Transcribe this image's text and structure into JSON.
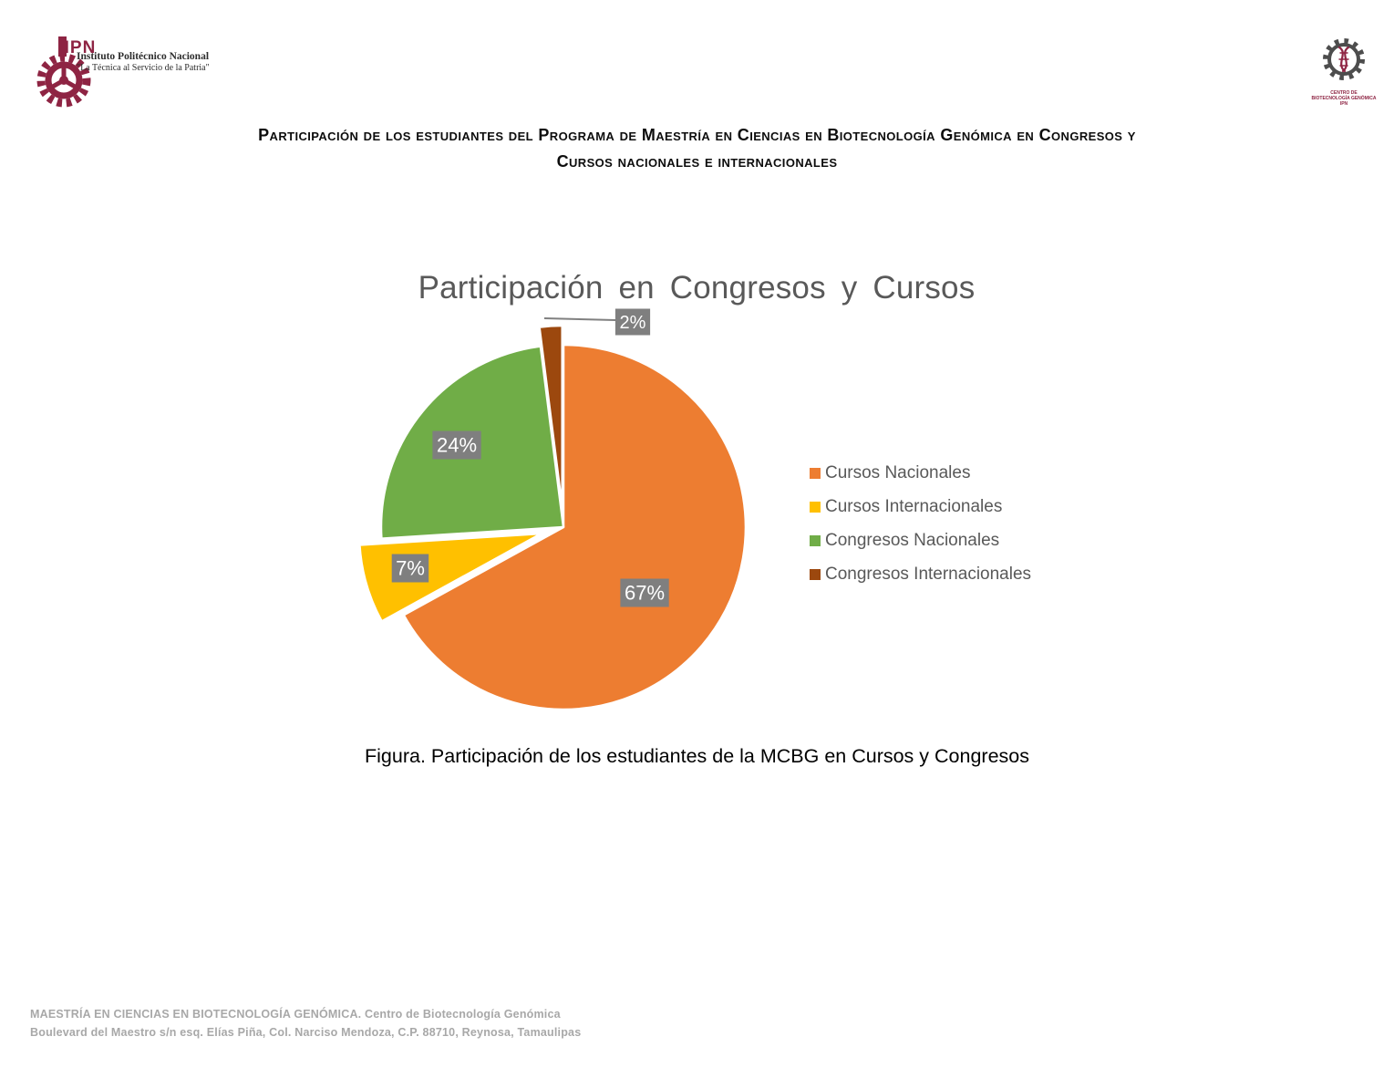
{
  "header": {
    "ipn": {
      "name": "Instituto Politécnico Nacional",
      "motto": "\"La Técnica al Servicio de la Patria\""
    },
    "cbg": {
      "l1": "CENTRO DE",
      "l2": "BIOTECNOLOGÍA GENÓMICA",
      "l3": "IPN"
    },
    "title_line1": "Participación de los estudiantes del Programa de Maestría en Ciencias en Biotecnología Genómica en Congresos y",
    "title_line2": "Cursos nacionales e internacionales"
  },
  "chart_data": {
    "type": "pie",
    "title": "Participación en Congresos y Cursos",
    "categories": [
      "Cursos Nacionales",
      "Cursos Internacionales",
      "Congresos Nacionales",
      "Congresos Internacionales"
    ],
    "values": [
      67,
      7,
      24,
      2
    ],
    "data_labels": [
      "67%",
      "7%",
      "24%",
      "2%"
    ],
    "colors": [
      "#ED7D31",
      "#FFC000",
      "#70AD47",
      "#9C480E"
    ],
    "exploded": [
      false,
      true,
      false,
      true
    ],
    "start_angle_deg": 0,
    "direction": "clockwise",
    "legend_position": "right",
    "title_color": "#595959",
    "legend_text_color": "#595959",
    "label_bg": "#7F7F7F",
    "label_text_color": "#FFFFFF",
    "leader_line_color": "#808080"
  },
  "caption": "Figura. Participación de los estudiantes de la MCBG en Cursos y Congresos",
  "footer": {
    "line1": "MAESTRÍA EN CIENCIAS EN BIOTECNOLOGÍA GENÓMICA. Centro de Biotecnología Genómica",
    "line2": "Boulevard del Maestro s/n esq. Elías Piña, Col. Narciso Mendoza, C.P. 88710, Reynosa, Tamaulipas"
  }
}
